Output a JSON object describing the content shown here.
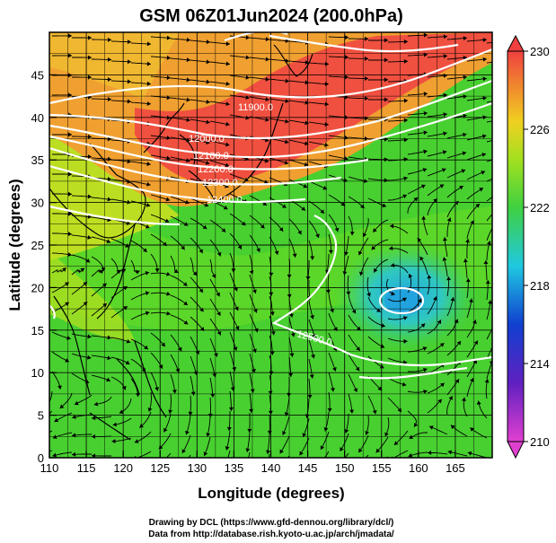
{
  "title": "GSM 06Z01Jun2024 (200.0hPa)",
  "x_axis": {
    "label": "Longitude (degrees)",
    "ticks": [
      "110",
      "115",
      "120",
      "125",
      "130",
      "135",
      "140",
      "145",
      "150",
      "155",
      "160",
      "165"
    ],
    "range": [
      110,
      170
    ]
  },
  "y_axis": {
    "label": "Latitude  (degrees)",
    "ticks": [
      "0",
      "5",
      "10",
      "15",
      "20",
      "25",
      "30",
      "35",
      "40",
      "45"
    ],
    "range": [
      0,
      50
    ]
  },
  "colorbar": {
    "labels": [
      "230",
      "226",
      "222",
      "218",
      "214",
      "210"
    ],
    "range": [
      210,
      230
    ]
  },
  "contour_labels": [
    "11900.0",
    "12000.0",
    "12100.0",
    "12200.0",
    "12300.0",
    "12400.0",
    "12500.0"
  ],
  "credits": {
    "line1": "Drawing by DCL (https://www.gfd-dennou.org/library/dcl/)",
    "line2": "Data from http://database.rish.kyoto-u.ac.jp/arch/jmadata/"
  },
  "colors": {
    "magenta": "#e040d0",
    "blue": "#1020c0",
    "cyan": "#20c8e0",
    "green": "#40d020",
    "yellow": "#e8e020",
    "orange": "#f09030",
    "red": "#f04040"
  }
}
